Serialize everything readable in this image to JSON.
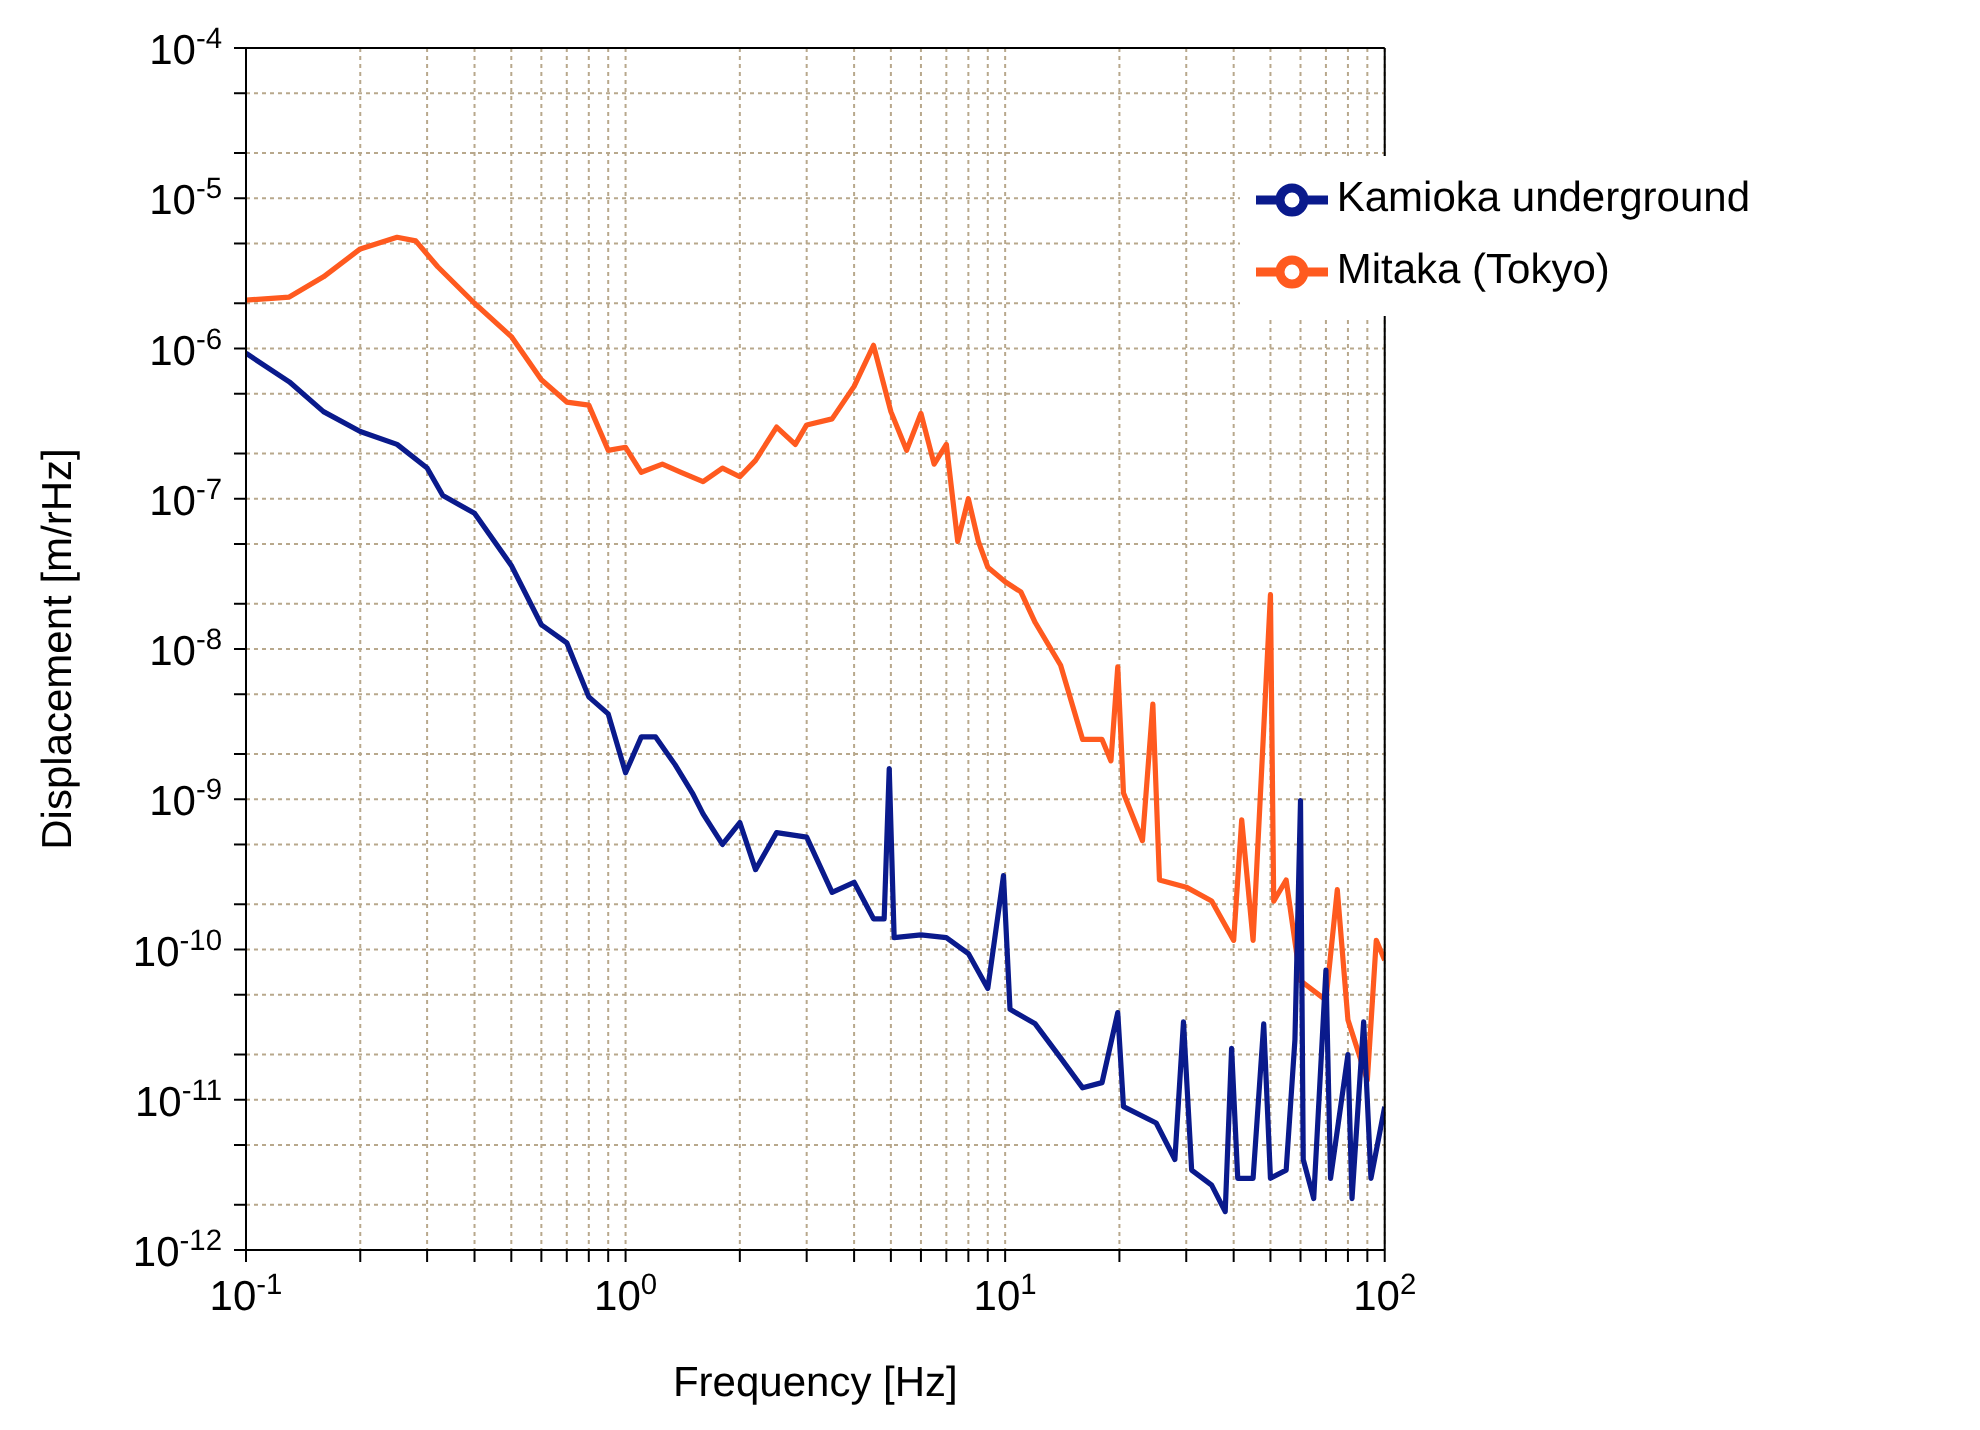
{
  "chart_data": {
    "type": "line",
    "xlabel": "Frequency [Hz]",
    "ylabel": "Displacement [m/rHz]",
    "log": "xy",
    "grid": true,
    "legend": "top right",
    "marker": "none",
    "line_style": "solid",
    "xlim": [
      0.1,
      100
    ],
    "xticks": [
      {
        "value": 0.1,
        "label": "10$^{-1}$"
      },
      {
        "value": 0.2,
        "label": null
      },
      {
        "value": 0.3,
        "label": null
      },
      {
        "value": 0.4,
        "label": null
      },
      {
        "value": 0.5,
        "label": null
      },
      {
        "value": 0.6,
        "label": null
      },
      {
        "value": 0.7,
        "label": null
      },
      {
        "value": 0.8,
        "label": null
      },
      {
        "value": 0.9,
        "label": null
      },
      {
        "value": 1,
        "label": "10$^{0}$"
      },
      {
        "value": 2,
        "label": null
      },
      {
        "value": 3,
        "label": null
      },
      {
        "value": 4,
        "label": null
      },
      {
        "value": 5,
        "label": null
      },
      {
        "value": 6,
        "label": null
      },
      {
        "value": 7,
        "label": null
      },
      {
        "value": 8,
        "label": null
      },
      {
        "value": 9,
        "label": null
      },
      {
        "value": 10,
        "label": "10$^{1}$"
      },
      {
        "value": 20,
        "label": null
      },
      {
        "value": 30,
        "label": null
      },
      {
        "value": 40,
        "label": null
      },
      {
        "value": 50,
        "label": null
      },
      {
        "value": 60,
        "label": null
      },
      {
        "value": 70,
        "label": null
      },
      {
        "value": 80,
        "label": null
      },
      {
        "value": 90,
        "label": null
      },
      {
        "value": 100,
        "label": "10$^{2}$"
      }
    ],
    "ylim": [
      1e-12,
      0.0001
    ],
    "yticks": [
      {
        "value": 1e-12,
        "label": "10$^{-12}$"
      },
      {
        "value": 2e-12,
        "label": null
      },
      {
        "value": 5e-12,
        "label": null
      },
      {
        "value": 1e-11,
        "label": "10$^{-11}$"
      },
      {
        "value": 2e-11,
        "label": null
      },
      {
        "value": 5e-11,
        "label": null
      },
      {
        "value": 1e-10,
        "label": "10$^{-10}$"
      },
      {
        "value": 2e-10,
        "label": null
      },
      {
        "value": 5e-10,
        "label": null
      },
      {
        "value": 1e-09,
        "label": "10$^{-9}$"
      },
      {
        "value": 2e-09,
        "label": null
      },
      {
        "value": 5e-09,
        "label": null
      },
      {
        "value": 1e-08,
        "label": "10$^{-8}$"
      },
      {
        "value": 2e-08,
        "label": null
      },
      {
        "value": 5e-08,
        "label": null
      },
      {
        "value": 1e-07,
        "label": "10$^{-7}$"
      },
      {
        "value": 2e-07,
        "label": null
      },
      {
        "value": 5e-07,
        "label": null
      },
      {
        "value": 1e-06,
        "label": "10$^{-6}$"
      },
      {
        "value": 2e-06,
        "label": null
      },
      {
        "value": 5e-06,
        "label": null
      },
      {
        "value": 1e-05,
        "label": "10$^{-5}$"
      },
      {
        "value": 2e-05,
        "label": null
      },
      {
        "value": 5e-05,
        "label": null
      },
      {
        "value": 0.0001,
        "label": "10$^{-4}$"
      }
    ],
    "series": [
      {
        "name": "Mitaka (Tokyo)",
        "color": "#ff5a1f",
        "x": [
          0.1,
          0.13,
          0.16,
          0.2,
          0.25,
          0.28,
          0.32,
          0.4,
          0.5,
          0.6,
          0.7,
          0.8,
          0.9,
          1.0,
          1.1,
          1.25,
          1.4,
          1.6,
          1.8,
          2.0,
          2.2,
          2.5,
          2.8,
          3.0,
          3.5,
          4.0,
          4.5,
          5.0,
          5.5,
          6.0,
          6.5,
          7.0,
          7.5,
          8.0,
          8.5,
          9.0,
          10,
          11,
          12,
          14,
          16,
          18,
          19,
          19.8,
          20.5,
          23,
          24.5,
          25.5,
          30,
          35,
          40,
          42,
          45,
          50,
          51,
          55,
          60,
          70,
          75,
          80,
          90,
          95,
          100
        ],
        "values": [
          2.1e-06,
          2.2e-06,
          3e-06,
          4.6e-06,
          5.5e-06,
          5.2e-06,
          3.5e-06,
          2e-06,
          1.2e-06,
          6.2e-07,
          4.4e-07,
          4.2e-07,
          2.1e-07,
          2.2e-07,
          1.5e-07,
          1.7e-07,
          1.5e-07,
          1.3e-07,
          1.6e-07,
          1.4e-07,
          1.8e-07,
          3e-07,
          2.3e-07,
          3.1e-07,
          3.4e-07,
          5.6e-07,
          1.05e-06,
          3.8e-07,
          2.1e-07,
          3.7e-07,
          1.7e-07,
          2.3e-07,
          5.2e-08,
          1e-07,
          5.2e-08,
          3.5e-08,
          2.8e-08,
          2.4e-08,
          1.5e-08,
          7.8e-09,
          2.5e-09,
          2.5e-09,
          1.8e-09,
          7.6e-09,
          1.1e-09,
          5.3e-10,
          4.3e-09,
          2.9e-10,
          2.6e-10,
          2.1e-10,
          1.15e-10,
          7.3e-10,
          1.15e-10,
          2.3e-08,
          2.1e-10,
          2.9e-10,
          6.2e-11,
          4.6e-11,
          2.5e-10,
          3.4e-11,
          1.35e-11,
          1.15e-10,
          8.5e-11
        ]
      },
      {
        "name": "Kamioka underground",
        "color": "#0a1a8c",
        "x": [
          0.1,
          0.13,
          0.16,
          0.2,
          0.25,
          0.3,
          0.33,
          0.4,
          0.5,
          0.6,
          0.7,
          0.8,
          0.9,
          1.0,
          1.1,
          1.2,
          1.35,
          1.5,
          1.6,
          1.8,
          2.0,
          2.2,
          2.5,
          3.0,
          3.5,
          4.0,
          4.5,
          4.8,
          4.95,
          5.1,
          6,
          7,
          8,
          9,
          9.9,
          10.3,
          12,
          14,
          16,
          18,
          19.8,
          20.5,
          25,
          28,
          29.5,
          31,
          35,
          38,
          39.5,
          41,
          45,
          48,
          50,
          55,
          58,
          60,
          61,
          65,
          70,
          72,
          80,
          82,
          88,
          92,
          100
        ],
        "values": [
          9.3e-07,
          6e-07,
          3.8e-07,
          2.8e-07,
          2.3e-07,
          1.6e-07,
          1.05e-07,
          8e-08,
          3.6e-08,
          1.45e-08,
          1.1e-08,
          4.8e-09,
          3.7e-09,
          1.5e-09,
          2.6e-09,
          2.6e-09,
          1.7e-09,
          1.1e-09,
          8e-10,
          5e-10,
          7e-10,
          3.4e-10,
          6e-10,
          5.6e-10,
          2.4e-10,
          2.8e-10,
          1.6e-10,
          1.6e-10,
          1.6e-09,
          1.2e-10,
          1.25e-10,
          1.2e-10,
          9.4e-11,
          5.5e-11,
          3.1e-10,
          4e-11,
          3.2e-11,
          1.9e-11,
          1.2e-11,
          1.3e-11,
          3.8e-11,
          9e-12,
          7e-12,
          4e-12,
          3.3e-11,
          3.4e-12,
          2.7e-12,
          1.8e-12,
          2.2e-11,
          3e-12,
          3e-12,
          3.2e-11,
          3e-12,
          3.4e-12,
          2.5e-11,
          9.8e-10,
          4e-12,
          2.2e-12,
          7.3e-11,
          3e-12,
          2e-11,
          2.2e-12,
          3.3e-11,
          3e-12,
          9e-12
        ]
      }
    ]
  }
}
